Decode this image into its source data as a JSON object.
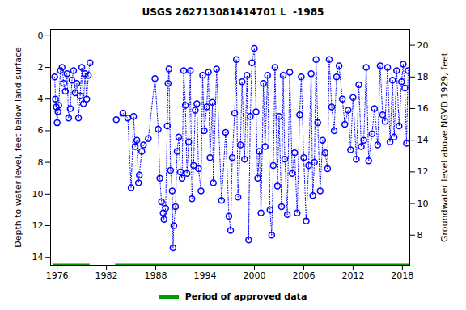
{
  "chart_data": {
    "type": "line",
    "title": "USGS 262713081414701 L  -1985",
    "y_label": "Depth to water level, feet below land surface",
    "y2_label": "Groundwater level above NGVD 1929, feet",
    "x": [
      1975.7,
      1975.8,
      1975.9,
      1976.0,
      1976.1,
      1976.2,
      1976.4,
      1976.6,
      1976.8,
      1977.0,
      1977.2,
      1977.4,
      1977.6,
      1977.8,
      1978.0,
      1978.2,
      1978.4,
      1978.6,
      1978.8,
      1979.0,
      1979.2,
      1979.4,
      1979.6,
      1979.8,
      1980.0,
      1981.5,
      1983.2,
      1984.0,
      1984.6,
      1985.0,
      1985.3,
      1985.5,
      1985.7,
      1985.9,
      1986.0,
      1986.3,
      1986.5,
      1987.1,
      1987.9,
      1988.3,
      1988.5,
      1988.7,
      1988.9,
      1989.0,
      1989.2,
      1989.4,
      1989.5,
      1989.6,
      1989.8,
      1990.0,
      1990.1,
      1990.2,
      1990.4,
      1990.6,
      1990.8,
      1991.0,
      1991.2,
      1991.4,
      1991.6,
      1991.8,
      1992.0,
      1992.2,
      1992.4,
      1992.6,
      1992.8,
      1993.0,
      1993.2,
      1993.5,
      1993.7,
      1993.9,
      1994.2,
      1994.4,
      1994.6,
      1994.9,
      1995.0,
      1995.4,
      1996.0,
      1996.5,
      1996.9,
      1997.1,
      1997.3,
      1997.6,
      1997.8,
      1998.0,
      1998.3,
      1998.5,
      1998.8,
      1999.1,
      1999.3,
      1999.5,
      1999.7,
      2000.0,
      2000.2,
      2000.4,
      2000.6,
      2000.8,
      2001.1,
      2001.3,
      2001.6,
      2001.9,
      2002.1,
      2002.3,
      2002.5,
      2002.8,
      2003.0,
      2003.3,
      2003.5,
      2003.7,
      2004.0,
      2004.3,
      2004.6,
      2004.9,
      2005.2,
      2005.5,
      2005.7,
      2006.0,
      2006.3,
      2006.6,
      2006.9,
      2007.1,
      2007.3,
      2007.5,
      2007.7,
      2008.0,
      2008.3,
      2008.6,
      2008.9,
      2009.1,
      2009.4,
      2009.7,
      2010.0,
      2010.3,
      2010.7,
      2011.0,
      2011.4,
      2011.7,
      2012.0,
      2012.4,
      2012.7,
      2013.0,
      2013.3,
      2013.6,
      2013.9,
      2014.3,
      2014.6,
      2015.0,
      2015.3,
      2015.6,
      2015.9,
      2016.2,
      2016.5,
      2016.8,
      2017.0,
      2017.3,
      2017.6,
      2017.9,
      2018.1,
      2018.3,
      2018.5,
      2018.7
    ],
    "series": [
      {
        "color": "#0000ff",
        "marker": "circle",
        "line_style": "dotted",
        "values": [
          2.6,
          4.0,
          4.5,
          5.5,
          4.8,
          4.4,
          2.2,
          2.0,
          3.0,
          3.5,
          2.4,
          5.2,
          4.6,
          2.8,
          2.2,
          3.6,
          3.0,
          5.2,
          3.8,
          2.0,
          4.3,
          2.4,
          4.0,
          2.5,
          1.7,
          null,
          5.3,
          4.9,
          5.2,
          9.6,
          5.1,
          7.0,
          6.6,
          9.3,
          8.8,
          7.3,
          6.9,
          6.5,
          2.7,
          5.9,
          9.0,
          10.5,
          11.2,
          11.6,
          10.9,
          5.7,
          3.0,
          2.1,
          8.5,
          9.8,
          13.4,
          12.0,
          10.8,
          7.3,
          6.4,
          8.6,
          9.0,
          2.2,
          4.4,
          8.7,
          6.7,
          2.2,
          10.3,
          8.2,
          4.7,
          4.3,
          8.4,
          9.8,
          2.5,
          6.0,
          4.5,
          2.3,
          7.7,
          4.2,
          9.3,
          2.1,
          10.4,
          6.1,
          11.4,
          12.3,
          7.7,
          4.9,
          1.5,
          10.2,
          6.9,
          2.9,
          7.8,
          2.5,
          12.9,
          5.1,
          1.7,
          0.8,
          4.8,
          9.0,
          7.3,
          11.2,
          3.0,
          7.0,
          2.5,
          11.0,
          12.6,
          8.2,
          2.0,
          9.5,
          5.1,
          10.8,
          2.5,
          7.8,
          11.3,
          2.3,
          8.7,
          7.4,
          11.2,
          5.0,
          2.6,
          7.7,
          11.7,
          8.2,
          2.4,
          10.1,
          8.0,
          1.5,
          5.5,
          9.8,
          6.6,
          7.4,
          8.4,
          1.5,
          4.5,
          6.0,
          2.6,
          1.9,
          4.0,
          5.6,
          4.7,
          7.2,
          3.9,
          7.8,
          3.1,
          7.0,
          6.6,
          2.0,
          7.9,
          6.2,
          4.6,
          6.9,
          1.9,
          5.0,
          5.4,
          2.0,
          6.7,
          2.8,
          6.4,
          2.2,
          5.7,
          2.9,
          1.8,
          3.3,
          6.8,
          2.2
        ]
      }
    ],
    "approved_periods": {
      "name": "Period of approved data",
      "color": "#009900",
      "ranges": [
        [
          1975.5,
          1980.0
        ],
        [
          1983.1,
          2018.8
        ]
      ]
    },
    "xlim": [
      1975.2,
      2018.9
    ],
    "xticks": [
      1976,
      1982,
      1988,
      1994,
      2000,
      2006,
      2012,
      2018
    ],
    "ylim": [
      -0.4,
      14.5
    ],
    "yticks": [
      0,
      2,
      4,
      6,
      8,
      10,
      12,
      14
    ],
    "y2lim": [
      6.1,
      21.0
    ],
    "y2ticks": [
      8,
      10,
      12,
      14,
      16,
      18,
      20
    ],
    "grid": false
  }
}
